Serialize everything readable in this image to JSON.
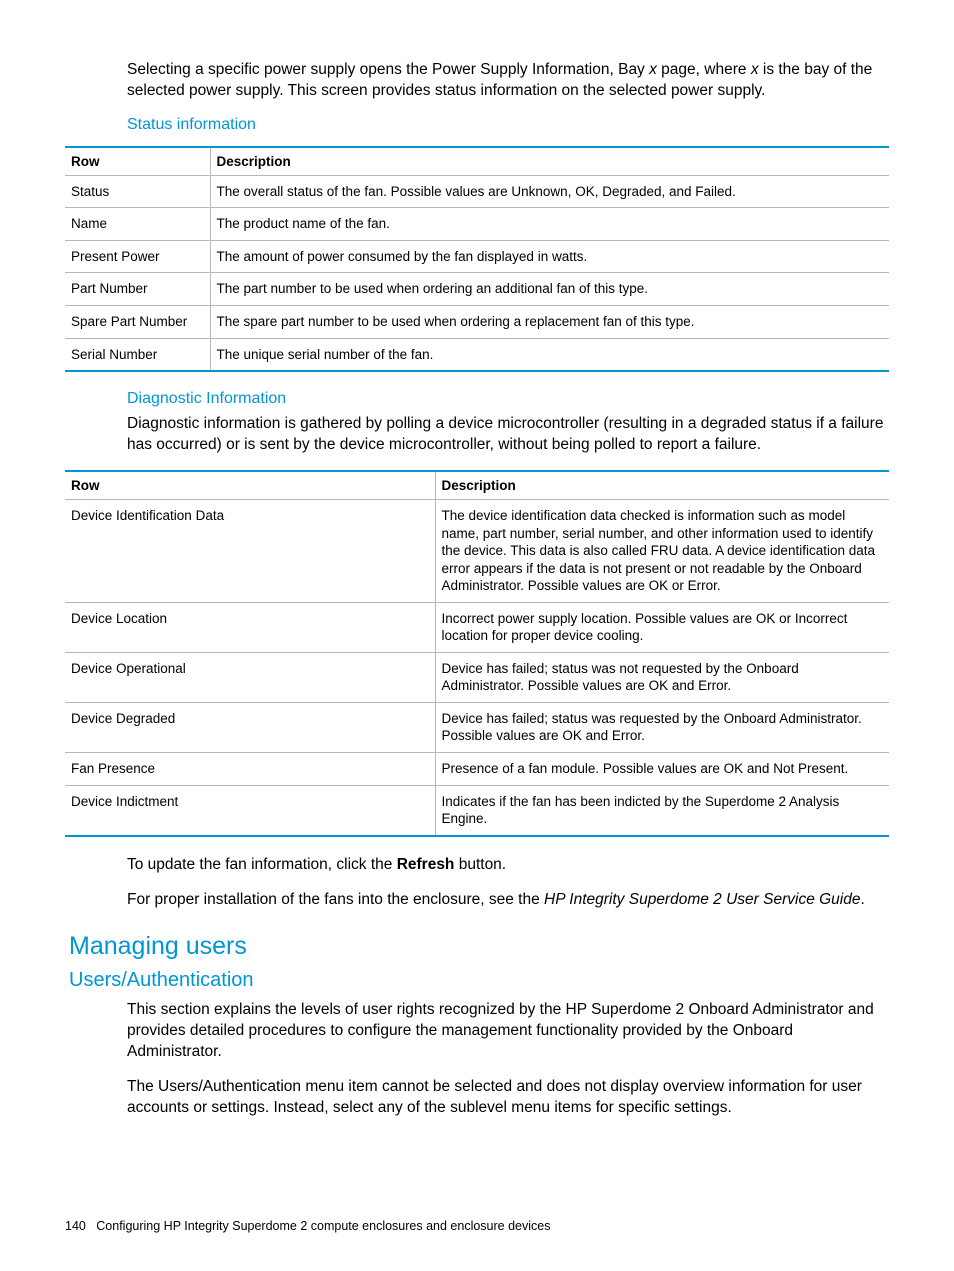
{
  "colors": {
    "accent": "#0096d6",
    "border": "#b8b8b8",
    "text": "#000000",
    "bg": "#ffffff"
  },
  "intro": {
    "p1_a": "Selecting a specific power supply opens the Power Supply Information, Bay ",
    "p1_x1": "x",
    "p1_b": " page, where ",
    "p1_x2": "x",
    "p1_c": " is the bay of the selected power supply. This screen provides status information on the selected power supply."
  },
  "status": {
    "heading": "Status information",
    "header": {
      "c1": "Row",
      "c2": "Description"
    },
    "rows": [
      {
        "c1": "Status",
        "c2": "The overall status of the fan. Possible values are Unknown, OK, Degraded, and Failed."
      },
      {
        "c1": "Name",
        "c2": "The product name of the fan."
      },
      {
        "c1": "Present Power",
        "c2": "The amount of power consumed by the fan displayed in watts."
      },
      {
        "c1": "Part Number",
        "c2": "The part number to be used when ordering an additional fan of this type."
      },
      {
        "c1": "Spare Part Number",
        "c2": "The spare part number to be used when ordering a replacement fan of this type."
      },
      {
        "c1": "Serial Number",
        "c2": "The unique serial number of the fan."
      }
    ]
  },
  "diag": {
    "heading": "Diagnostic Information",
    "intro": "Diagnostic information is gathered by polling a device microcontroller (resulting in a degraded status if a failure has occurred) or is sent by the device microcontroller, without being polled to report a failure.",
    "header": {
      "c1": "Row",
      "c2": "Description"
    },
    "rows": [
      {
        "c1": "Device Identification Data",
        "c2": "The device identification data checked is information such as model name, part number, serial number, and other information used to identify the device. This data is also called FRU data. A device identification data error appears if the data is not present or not readable by the Onboard Administrator. Possible values are OK or Error."
      },
      {
        "c1": "Device Location",
        "c2": "Incorrect power supply location. Possible values are OK or Incorrect location for proper device cooling."
      },
      {
        "c1": "Device Operational",
        "c2": "Device has failed; status was not requested by the Onboard Administrator. Possible values are OK and Error."
      },
      {
        "c1": "Device Degraded",
        "c2": "Device has failed; status was requested by the Onboard Administrator. Possible values are OK and Error."
      },
      {
        "c1": "Fan Presence",
        "c2": "Presence of a fan module. Possible values are OK and Not Present."
      },
      {
        "c1": "Device Indictment",
        "c2": "Indicates if the fan has been indicted by the Superdome 2 Analysis Engine."
      }
    ]
  },
  "after": {
    "p1_a": "To update the fan information, click the ",
    "p1_b": "Refresh",
    "p1_c": " button.",
    "p2_a": "For proper installation of the fans into the enclosure, see the ",
    "p2_b": "HP Integrity Superdome 2 User Service Guide",
    "p2_c": "."
  },
  "managing": {
    "h1": "Managing users",
    "h2": "Users/Authentication",
    "p1": "This section explains the levels of user rights recognized by the HP Superdome 2 Onboard Administrator and provides detailed procedures to configure the management functionality provided by the Onboard Administrator.",
    "p2": "The Users/Authentication menu item cannot be selected and does not display overview information for user accounts or settings. Instead, select any of the sublevel menu items for specific settings."
  },
  "footer": {
    "page": "140",
    "chapter": "Configuring HP Integrity Superdome 2 compute enclosures and enclosure devices"
  }
}
